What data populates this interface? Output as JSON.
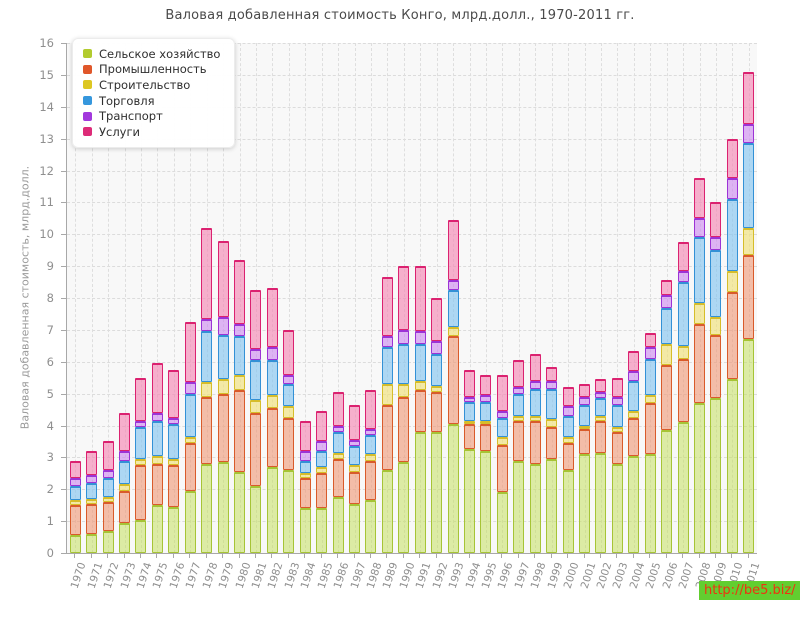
{
  "header": {
    "title": "Валовая добавленная стоимость Конго, млрд.долл., 1970-2011 гг."
  },
  "footer": {
    "link_text": "http://be5.biz/",
    "background": "#62ce30",
    "text_color": "#ee3311"
  },
  "chart_data": {
    "type": "bar",
    "stacked": true,
    "title": "Валовая добавленная стоимость Конго, млрд.долл., 1970-2011 гг.",
    "xlabel": "",
    "ylabel": "Валовая добавленная стоимость, млрд.долл.",
    "ylim": [
      0,
      16
    ],
    "ytick_step": 1,
    "grid": true,
    "legend_position": "top-left",
    "units": "млрд.долл.",
    "categories": [
      "1970",
      "1971",
      "1972",
      "1973",
      "1974",
      "1975",
      "1976",
      "1977",
      "1978",
      "1979",
      "1980",
      "1981",
      "1982",
      "1983",
      "1984",
      "1985",
      "1986",
      "1987",
      "1988",
      "1989",
      "1990",
      "1991",
      "1992",
      "1993",
      "1994",
      "1995",
      "1996",
      "1997",
      "1998",
      "1999",
      "2000",
      "2001",
      "2002",
      "2003",
      "2004",
      "2005",
      "2006",
      "2007",
      "2008",
      "2009",
      "2010",
      "2011"
    ],
    "series": [
      {
        "name": "Сельское хозяйство",
        "legend_color": "#b2cb2e",
        "border": "#a6c436",
        "fill": "rgba(197,224,94,0.55)",
        "values": [
          0.55,
          0.6,
          0.7,
          0.95,
          1.05,
          1.5,
          1.45,
          1.95,
          2.8,
          2.85,
          2.55,
          2.1,
          2.7,
          2.6,
          1.4,
          1.4,
          1.75,
          1.55,
          1.65,
          2.6,
          2.85,
          3.8,
          3.8,
          4.05,
          3.25,
          3.2,
          1.9,
          2.9,
          2.8,
          2.95,
          2.6,
          3.1,
          3.15,
          2.8,
          3.05,
          3.1,
          3.85,
          4.1,
          4.7,
          4.85,
          5.45,
          6.7
        ]
      },
      {
        "name": "Промышленность",
        "legend_color": "#e0572a",
        "border": "#d95b2b",
        "fill": "rgba(240,150,115,0.6)",
        "values": [
          0.95,
          0.95,
          0.9,
          1.0,
          1.7,
          1.3,
          1.3,
          1.5,
          2.1,
          2.15,
          2.55,
          2.3,
          1.85,
          1.65,
          0.95,
          1.1,
          1.2,
          1.0,
          1.25,
          2.05,
          2.05,
          1.3,
          1.25,
          2.75,
          0.8,
          0.85,
          1.5,
          1.25,
          1.35,
          1.0,
          0.85,
          0.8,
          1.0,
          1.0,
          1.2,
          1.6,
          2.05,
          2.0,
          2.5,
          2.0,
          2.75,
          2.65
        ]
      },
      {
        "name": "Строительство",
        "legend_color": "#ddc722",
        "border": "#d6bd2a",
        "fill": "rgba(240,225,120,0.65)",
        "values": [
          0.15,
          0.15,
          0.15,
          0.2,
          0.2,
          0.25,
          0.2,
          0.2,
          0.45,
          0.45,
          0.5,
          0.4,
          0.4,
          0.35,
          0.15,
          0.2,
          0.2,
          0.2,
          0.2,
          0.65,
          0.4,
          0.3,
          0.2,
          0.3,
          0.1,
          0.1,
          0.25,
          0.15,
          0.15,
          0.25,
          0.2,
          0.1,
          0.15,
          0.15,
          0.2,
          0.25,
          0.65,
          0.4,
          0.65,
          0.55,
          0.65,
          0.85
        ]
      },
      {
        "name": "Торговля",
        "legend_color": "#3597dd",
        "border": "#3391d6",
        "fill": "rgba(132,197,240,0.65)",
        "values": [
          0.45,
          0.5,
          0.6,
          0.75,
          1.0,
          1.1,
          1.1,
          1.35,
          1.6,
          1.4,
          1.2,
          1.25,
          1.1,
          0.7,
          0.4,
          0.5,
          0.65,
          0.6,
          0.6,
          1.15,
          1.25,
          1.15,
          1.0,
          1.15,
          0.6,
          0.6,
          0.6,
          0.7,
          0.85,
          0.95,
          0.65,
          0.65,
          0.55,
          0.7,
          0.95,
          1.15,
          1.15,
          2.0,
          2.05,
          2.1,
          2.25,
          2.65
        ]
      },
      {
        "name": "Транспорт",
        "legend_color": "#a238dd",
        "border": "#9c33d6",
        "fill": "rgba(203,133,240,0.6)",
        "values": [
          0.25,
          0.25,
          0.25,
          0.3,
          0.2,
          0.25,
          0.2,
          0.35,
          0.4,
          0.55,
          0.4,
          0.35,
          0.4,
          0.3,
          0.3,
          0.3,
          0.2,
          0.2,
          0.2,
          0.35,
          0.45,
          0.4,
          0.4,
          0.3,
          0.15,
          0.2,
          0.2,
          0.2,
          0.25,
          0.25,
          0.3,
          0.25,
          0.2,
          0.25,
          0.3,
          0.35,
          0.4,
          0.35,
          0.6,
          0.4,
          0.65,
          0.6
        ]
      },
      {
        "name": "Услуги",
        "legend_color": "#dd2b78",
        "border": "#db2270",
        "fill": "rgba(244,135,180,0.65)",
        "values": [
          0.55,
          0.75,
          0.9,
          1.2,
          1.35,
          1.55,
          1.5,
          1.9,
          2.85,
          2.4,
          2.0,
          1.85,
          1.85,
          1.4,
          0.95,
          0.95,
          1.05,
          1.1,
          1.2,
          1.85,
          2.0,
          2.05,
          1.35,
          1.9,
          0.85,
          0.65,
          1.15,
          0.85,
          0.85,
          0.45,
          0.6,
          0.4,
          0.4,
          0.6,
          0.65,
          0.45,
          0.45,
          0.9,
          1.25,
          1.1,
          1.25,
          1.65
        ]
      }
    ]
  }
}
